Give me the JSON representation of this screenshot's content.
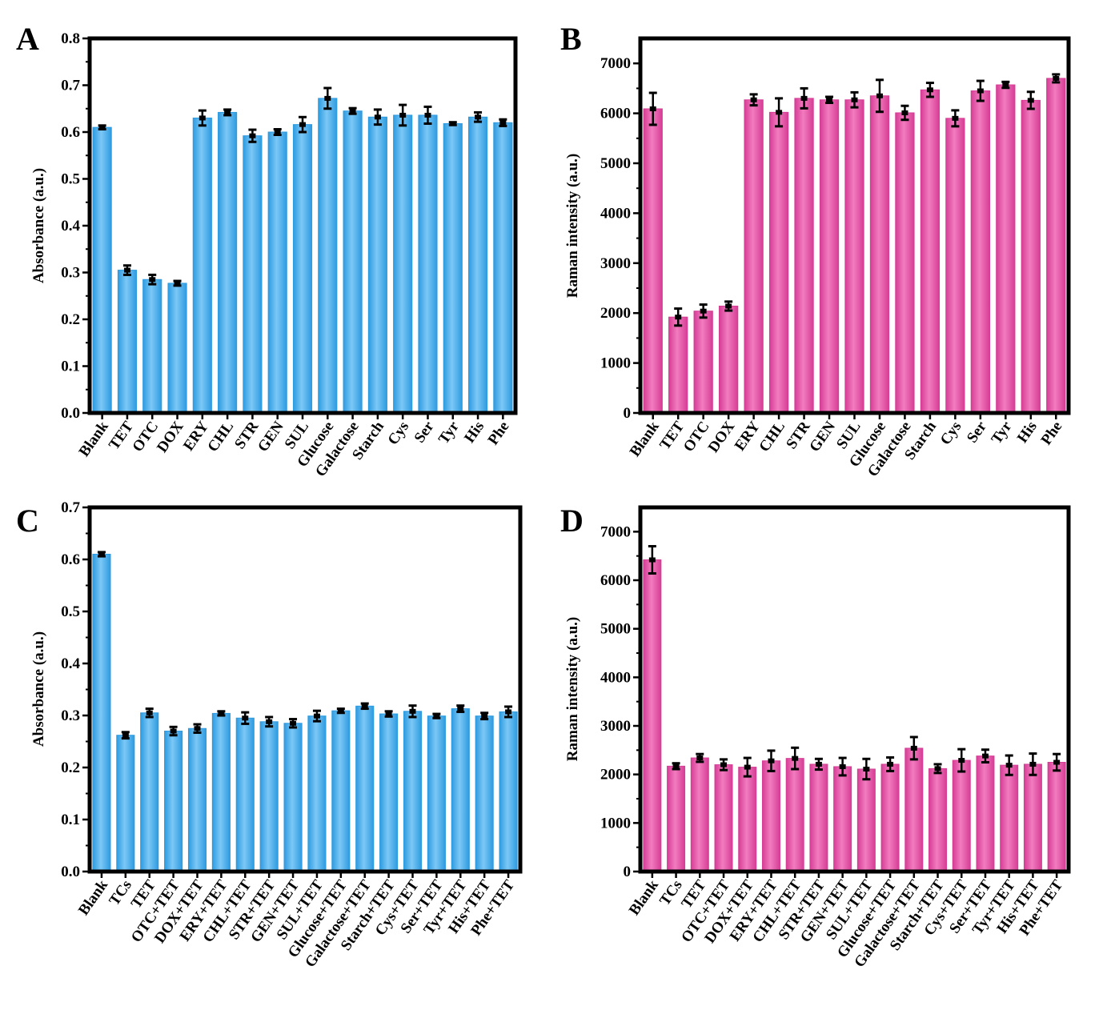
{
  "colors": {
    "blue_bar": "#2e9be0",
    "blue_bar_light": "#7cc8f6",
    "pink_bar": "#d63d95",
    "pink_bar_light": "#f27cbf",
    "axis": "#000000",
    "error_bar": "#000000"
  },
  "chart_data": [
    {
      "panel": "A",
      "type": "bar",
      "color": "blue",
      "ylabel": "Absorbance (a.u.)",
      "ylim": [
        0,
        0.8
      ],
      "yticks": [
        "0.0",
        "0.1",
        "0.2",
        "0.3",
        "0.4",
        "0.5",
        "0.6",
        "0.7",
        "0.8"
      ],
      "categories": [
        "Blank",
        "TET",
        "OTC",
        "DOX",
        "ERY",
        "CHL",
        "STR",
        "GEN",
        "SUL",
        "Glucose",
        "Galactose",
        "Starch",
        "Cys",
        "Ser",
        "Tyr",
        "His",
        "Phe"
      ],
      "values": [
        0.61,
        0.305,
        0.285,
        0.277,
        0.63,
        0.642,
        0.592,
        0.6,
        0.616,
        0.672,
        0.645,
        0.632,
        0.636,
        0.636,
        0.618,
        0.632,
        0.62
      ],
      "errors": [
        0.004,
        0.01,
        0.01,
        0.005,
        0.016,
        0.006,
        0.013,
        0.006,
        0.016,
        0.022,
        0.006,
        0.016,
        0.022,
        0.018,
        0.003,
        0.01,
        0.007
      ]
    },
    {
      "panel": "B",
      "type": "bar",
      "color": "pink",
      "ylabel": "Raman intensity (a.u.)",
      "ylim": [
        0,
        7500
      ],
      "yticks": [
        "0",
        "1000",
        "2000",
        "3000",
        "4000",
        "5000",
        "6000",
        "7000"
      ],
      "categories": [
        "Blank",
        "TET",
        "OTC",
        "DOX",
        "ERY",
        "CHL",
        "STR",
        "GEN",
        "SUL",
        "Glucose",
        "Galactose",
        "Starch",
        "Cys",
        "Ser",
        "Tyr",
        "His",
        "Phe"
      ],
      "values": [
        6090,
        1920,
        2040,
        2140,
        6270,
        6020,
        6300,
        6270,
        6270,
        6350,
        6010,
        6470,
        5900,
        6450,
        6570,
        6260,
        6700
      ],
      "errors": [
        320,
        170,
        130,
        90,
        110,
        280,
        200,
        60,
        150,
        320,
        140,
        140,
        160,
        200,
        60,
        170,
        80
      ]
    },
    {
      "panel": "C",
      "type": "bar",
      "color": "blue",
      "ylabel": "Absorbance (a.u.)",
      "ylim": [
        0,
        0.7
      ],
      "yticks": [
        "0.0",
        "0.1",
        "0.2",
        "0.3",
        "0.4",
        "0.5",
        "0.6",
        "0.7"
      ],
      "categories": [
        "Blank",
        "TCs",
        "TET",
        "OTC+TET",
        "DOX+TET",
        "ERY+TET",
        "CHL+TET",
        "STR+TET",
        "GEN+TET",
        "SUL+TET",
        "Glucose+TET",
        "Galactose+TET",
        "Starch+TET",
        "Cys+TET",
        "Ser+TET",
        "Tyr+TET",
        "His+TET",
        "Phe+TET"
      ],
      "values": [
        0.61,
        0.262,
        0.305,
        0.27,
        0.275,
        0.304,
        0.295,
        0.288,
        0.285,
        0.299,
        0.309,
        0.318,
        0.303,
        0.308,
        0.299,
        0.313,
        0.299,
        0.307
      ],
      "errors": [
        0.004,
        0.006,
        0.008,
        0.008,
        0.008,
        0.004,
        0.011,
        0.009,
        0.008,
        0.01,
        0.004,
        0.005,
        0.005,
        0.011,
        0.004,
        0.006,
        0.006,
        0.01
      ]
    },
    {
      "panel": "D",
      "type": "bar",
      "color": "pink",
      "ylabel": "Raman intensity (a.u.)",
      "ylim": [
        0,
        7500
      ],
      "yticks": [
        "0",
        "1000",
        "2000",
        "3000",
        "4000",
        "5000",
        "6000",
        "7000"
      ],
      "categories": [
        "Blank",
        "TCs",
        "TET",
        "OTC+TET",
        "DOX+TET",
        "ERY+TET",
        "CHL+TET",
        "STR+TET",
        "GEN+TET",
        "SUL+TET",
        "Glucose+TET",
        "Galactose+TET",
        "Starch+TET",
        "Cys+TET",
        "Ser+TET",
        "Tyr+TET",
        "His+TET",
        "Phe+TET"
      ],
      "values": [
        6420,
        2170,
        2340,
        2200,
        2150,
        2280,
        2330,
        2210,
        2160,
        2110,
        2210,
        2540,
        2120,
        2290,
        2380,
        2190,
        2210,
        2250
      ],
      "errors": [
        280,
        60,
        80,
        110,
        190,
        210,
        220,
        110,
        180,
        210,
        140,
        230,
        90,
        230,
        130,
        200,
        220,
        170
      ]
    }
  ]
}
